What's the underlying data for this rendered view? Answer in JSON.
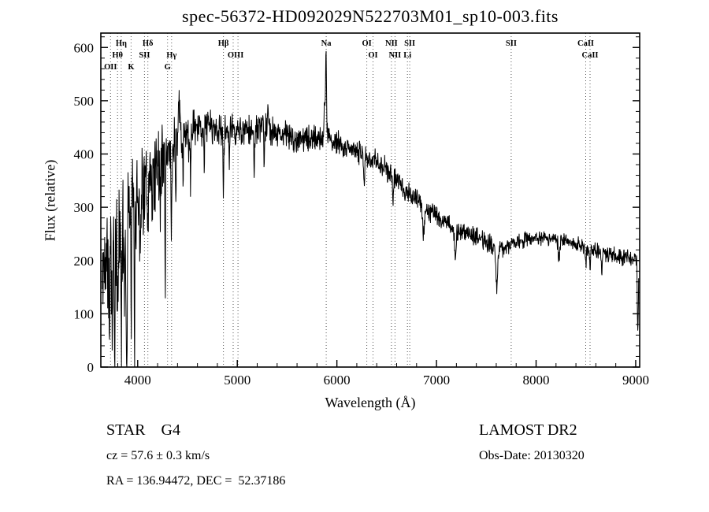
{
  "chart_data": {
    "type": "line",
    "title": "spec-56372-HD092029N522703M01_sp10-003.fits",
    "xlabel": "Wavelength (Å)",
    "ylabel": "Flux (relative)",
    "xlim": [
      3630,
      9040
    ],
    "ylim": [
      0,
      627
    ],
    "x_ticks": [
      4000,
      5000,
      6000,
      7000,
      8000,
      9000
    ],
    "y_ticks": [
      0,
      100,
      200,
      300,
      400,
      500,
      600
    ],
    "x_minor_step": 200,
    "y_minor_step": 20,
    "grid": false,
    "line_color": "#000000",
    "marker_line_color": "#555555",
    "legend": "none",
    "line_markers": [
      {
        "label": "Hη",
        "wavelength": 3835,
        "row": 1
      },
      {
        "label": "Hδ",
        "wavelength": 4102,
        "row": 1
      },
      {
        "label": "Hβ",
        "wavelength": 4861,
        "row": 1
      },
      {
        "label": "Na",
        "wavelength": 5893,
        "row": 1
      },
      {
        "label": "OI",
        "wavelength": 6300,
        "row": 1
      },
      {
        "label": "NII",
        "wavelength": 6548,
        "row": 1
      },
      {
        "label": "SII",
        "wavelength": 6731,
        "row": 1
      },
      {
        "label": "SII",
        "wavelength": 7750,
        "row": 1
      },
      {
        "label": "CaII",
        "wavelength": 8498,
        "row": 1
      },
      {
        "label": "Hθ",
        "wavelength": 3798,
        "row": 2
      },
      {
        "label": "SII",
        "wavelength": 4068,
        "row": 2
      },
      {
        "label": "Hγ",
        "wavelength": 4340,
        "row": 2
      },
      {
        "label": "OIII",
        "wavelength": 4983,
        "row": 2,
        "lines": [
          4959,
          5007
        ]
      },
      {
        "label": "OI",
        "wavelength": 6363,
        "row": 2
      },
      {
        "label": "NII",
        "wavelength": 6583,
        "row": 2
      },
      {
        "label": "Li",
        "wavelength": 6708,
        "row": 2
      },
      {
        "label": "CaII",
        "wavelength": 8542,
        "row": 2
      },
      {
        "label": "OII",
        "wavelength": 3727,
        "row": 3
      },
      {
        "label": "K",
        "wavelength": 3934,
        "row": 3
      },
      {
        "label": "G",
        "wavelength": 4300,
        "row": 3
      }
    ],
    "wavelength_range": [
      3645,
      9030
    ],
    "sample_step": 3,
    "noise_seed": 42,
    "continuum": [
      [
        3645,
        140
      ],
      [
        3680,
        235
      ],
      [
        3720,
        255
      ],
      [
        3760,
        240
      ],
      [
        3800,
        255
      ],
      [
        3840,
        275
      ],
      [
        3880,
        265
      ],
      [
        3920,
        295
      ],
      [
        3960,
        310
      ],
      [
        4000,
        325
      ],
      [
        4050,
        335
      ],
      [
        4100,
        345
      ],
      [
        4150,
        365
      ],
      [
        4200,
        385
      ],
      [
        4250,
        398
      ],
      [
        4300,
        405
      ],
      [
        4350,
        415
      ],
      [
        4400,
        428
      ],
      [
        4450,
        436
      ],
      [
        4500,
        432
      ],
      [
        4550,
        437
      ],
      [
        4600,
        446
      ],
      [
        4650,
        452
      ],
      [
        4700,
        456
      ],
      [
        4750,
        451
      ],
      [
        4800,
        446
      ],
      [
        4850,
        438
      ],
      [
        4900,
        442
      ],
      [
        4950,
        446
      ],
      [
        5000,
        442
      ],
      [
        5100,
        441
      ],
      [
        5200,
        446
      ],
      [
        5300,
        447
      ],
      [
        5400,
        441
      ],
      [
        5500,
        436
      ],
      [
        5600,
        427
      ],
      [
        5700,
        426
      ],
      [
        5800,
        431
      ],
      [
        5900,
        431
      ],
      [
        6000,
        421
      ],
      [
        6100,
        411
      ],
      [
        6200,
        406
      ],
      [
        6300,
        396
      ],
      [
        6400,
        386
      ],
      [
        6500,
        371
      ],
      [
        6600,
        351
      ],
      [
        6700,
        331
      ],
      [
        6800,
        312
      ],
      [
        6900,
        297
      ],
      [
        7000,
        286
      ],
      [
        7100,
        271
      ],
      [
        7200,
        257
      ],
      [
        7300,
        251
      ],
      [
        7400,
        246
      ],
      [
        7500,
        236
      ],
      [
        7600,
        222
      ],
      [
        7700,
        226
      ],
      [
        7800,
        233
      ],
      [
        7900,
        239
      ],
      [
        8000,
        241
      ],
      [
        8100,
        243
      ],
      [
        8200,
        241
      ],
      [
        8300,
        237
      ],
      [
        8400,
        231
      ],
      [
        8500,
        223
      ],
      [
        8600,
        217
      ],
      [
        8700,
        213
      ],
      [
        8800,
        209
      ],
      [
        8900,
        205
      ],
      [
        9000,
        201
      ],
      [
        9030,
        190
      ]
    ],
    "noise_amplitude": [
      [
        3645,
        85
      ],
      [
        3750,
        95
      ],
      [
        3900,
        95
      ],
      [
        4000,
        75
      ],
      [
        4150,
        65
      ],
      [
        4300,
        55
      ],
      [
        4450,
        45
      ],
      [
        4600,
        30
      ],
      [
        4800,
        25
      ],
      [
        5200,
        22
      ],
      [
        5600,
        20
      ],
      [
        6000,
        18
      ],
      [
        6400,
        17
      ],
      [
        6800,
        17
      ],
      [
        7200,
        16
      ],
      [
        7600,
        14
      ],
      [
        8000,
        12
      ],
      [
        8400,
        12
      ],
      [
        8800,
        13
      ],
      [
        9030,
        14
      ]
    ],
    "absorption_features": [
      [
        3715,
        150,
        7
      ],
      [
        3745,
        190,
        5
      ],
      [
        3770,
        250,
        5
      ],
      [
        3798,
        170,
        5
      ],
      [
        3835,
        190,
        5
      ],
      [
        3868,
        140,
        4
      ],
      [
        3889,
        250,
        5
      ],
      [
        3934,
        160,
        5
      ],
      [
        3969,
        215,
        5
      ],
      [
        4026,
        110,
        4
      ],
      [
        4102,
        145,
        5
      ],
      [
        4144,
        95,
        4
      ],
      [
        4227,
        110,
        4
      ],
      [
        4276,
        270,
        3
      ],
      [
        4340,
        175,
        4
      ],
      [
        4383,
        130,
        3
      ],
      [
        4455,
        110,
        3
      ],
      [
        4531,
        95,
        3
      ],
      [
        4668,
        85,
        3
      ],
      [
        4861,
        105,
        4
      ],
      [
        4920,
        65,
        3
      ],
      [
        5170,
        75,
        4
      ],
      [
        5270,
        65,
        3
      ],
      [
        6276,
        60,
        5
      ],
      [
        6563,
        65,
        4
      ],
      [
        6870,
        62,
        8
      ],
      [
        7190,
        48,
        9
      ],
      [
        7605,
        78,
        9
      ],
      [
        8230,
        35,
        8
      ],
      [
        8500,
        35,
        4
      ],
      [
        8542,
        40,
        4
      ],
      [
        8662,
        40,
        4
      ],
      [
        9022,
        125,
        5
      ]
    ],
    "emission_features": [
      [
        4420,
        85,
        3
      ],
      [
        5310,
        55,
        3
      ],
      [
        5876,
        70,
        4
      ],
      [
        5891,
        165,
        5
      ]
    ]
  },
  "footer": {
    "classification": "STAR    G4",
    "survey": "LAMOST DR2",
    "cz": "cz = 57.6 ± 0.3 km/s",
    "obs_date": "Obs-Date: 20130320",
    "coordinates": "RA = 136.94472, DEC =  52.37186"
  }
}
